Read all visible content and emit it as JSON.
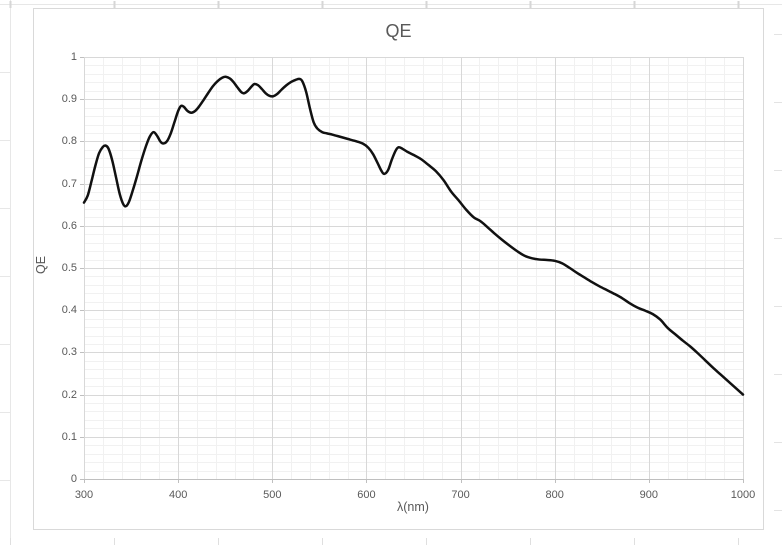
{
  "chart_data": {
    "type": "line",
    "title": "QE",
    "xlabel": "λ(nm)",
    "ylabel": "QE",
    "xlim": [
      300,
      1000
    ],
    "ylim": [
      0,
      1
    ],
    "x_ticks": [
      300,
      400,
      500,
      600,
      700,
      800,
      900,
      1000
    ],
    "y_ticks": [
      0,
      0.1,
      0.2,
      0.3,
      0.4,
      0.5,
      0.6,
      0.7,
      0.8,
      0.9,
      1
    ],
    "x_minor_step": 20,
    "y_minor_step": 0.02,
    "grid": "major+minor",
    "legend": "none",
    "style": {
      "line_color": "#111111",
      "major_grid_color": "#D8D8D8",
      "minor_grid_color": "#F1F1F1",
      "axis_color": "#BFBFBF",
      "text_color": "#595959",
      "frame_border_color": "#D9D9D9",
      "background": "#FFFFFF"
    },
    "series": [
      {
        "name": "QE",
        "points": [
          [
            300,
            0.655
          ],
          [
            304,
            0.672
          ],
          [
            308,
            0.706
          ],
          [
            312,
            0.742
          ],
          [
            316,
            0.772
          ],
          [
            320,
            0.787
          ],
          [
            323,
            0.79
          ],
          [
            326,
            0.783
          ],
          [
            330,
            0.755
          ],
          [
            334,
            0.715
          ],
          [
            338,
            0.675
          ],
          [
            342,
            0.65
          ],
          [
            345,
            0.647
          ],
          [
            348,
            0.658
          ],
          [
            352,
            0.685
          ],
          [
            356,
            0.715
          ],
          [
            361,
            0.755
          ],
          [
            366,
            0.79
          ],
          [
            370,
            0.812
          ],
          [
            374,
            0.822
          ],
          [
            378,
            0.812
          ],
          [
            381,
            0.8
          ],
          [
            384,
            0.795
          ],
          [
            388,
            0.8
          ],
          [
            392,
            0.818
          ],
          [
            396,
            0.845
          ],
          [
            400,
            0.872
          ],
          [
            403,
            0.884
          ],
          [
            406,
            0.882
          ],
          [
            410,
            0.872
          ],
          [
            414,
            0.868
          ],
          [
            418,
            0.872
          ],
          [
            422,
            0.882
          ],
          [
            427,
            0.898
          ],
          [
            432,
            0.915
          ],
          [
            437,
            0.931
          ],
          [
            442,
            0.943
          ],
          [
            447,
            0.951
          ],
          [
            451,
            0.953
          ],
          [
            455,
            0.949
          ],
          [
            459,
            0.94
          ],
          [
            463,
            0.928
          ],
          [
            467,
            0.917
          ],
          [
            470,
            0.914
          ],
          [
            474,
            0.92
          ],
          [
            478,
            0.93
          ],
          [
            481,
            0.936
          ],
          [
            485,
            0.933
          ],
          [
            489,
            0.924
          ],
          [
            493,
            0.914
          ],
          [
            497,
            0.908
          ],
          [
            501,
            0.907
          ],
          [
            505,
            0.912
          ],
          [
            510,
            0.923
          ],
          [
            515,
            0.933
          ],
          [
            520,
            0.941
          ],
          [
            525,
            0.946
          ],
          [
            529,
            0.948
          ],
          [
            532,
            0.942
          ],
          [
            536,
            0.917
          ],
          [
            540,
            0.878
          ],
          [
            544,
            0.845
          ],
          [
            548,
            0.83
          ],
          [
            553,
            0.822
          ],
          [
            558,
            0.819
          ],
          [
            564,
            0.816
          ],
          [
            572,
            0.811
          ],
          [
            580,
            0.806
          ],
          [
            588,
            0.801
          ],
          [
            596,
            0.795
          ],
          [
            602,
            0.785
          ],
          [
            607,
            0.77
          ],
          [
            612,
            0.748
          ],
          [
            616,
            0.73
          ],
          [
            619,
            0.723
          ],
          [
            623,
            0.732
          ],
          [
            627,
            0.757
          ],
          [
            631,
            0.778
          ],
          [
            634,
            0.786
          ],
          [
            638,
            0.783
          ],
          [
            643,
            0.776
          ],
          [
            650,
            0.768
          ],
          [
            658,
            0.758
          ],
          [
            666,
            0.744
          ],
          [
            674,
            0.729
          ],
          [
            682,
            0.708
          ],
          [
            690,
            0.681
          ],
          [
            698,
            0.66
          ],
          [
            706,
            0.638
          ],
          [
            714,
            0.62
          ],
          [
            721,
            0.611
          ],
          [
            728,
            0.598
          ],
          [
            736,
            0.582
          ],
          [
            744,
            0.567
          ],
          [
            752,
            0.553
          ],
          [
            760,
            0.54
          ],
          [
            768,
            0.529
          ],
          [
            776,
            0.523
          ],
          [
            784,
            0.52
          ],
          [
            792,
            0.519
          ],
          [
            800,
            0.517
          ],
          [
            808,
            0.511
          ],
          [
            816,
            0.5
          ],
          [
            824,
            0.488
          ],
          [
            832,
            0.477
          ],
          [
            840,
            0.466
          ],
          [
            848,
            0.456
          ],
          [
            856,
            0.447
          ],
          [
            864,
            0.438
          ],
          [
            872,
            0.428
          ],
          [
            880,
            0.416
          ],
          [
            888,
            0.406
          ],
          [
            896,
            0.399
          ],
          [
            904,
            0.391
          ],
          [
            912,
            0.378
          ],
          [
            920,
            0.358
          ],
          [
            928,
            0.343
          ],
          [
            936,
            0.328
          ],
          [
            944,
            0.314
          ],
          [
            952,
            0.298
          ],
          [
            960,
            0.281
          ],
          [
            968,
            0.264
          ],
          [
            976,
            0.248
          ],
          [
            984,
            0.232
          ],
          [
            992,
            0.216
          ],
          [
            1000,
            0.2
          ]
        ]
      }
    ]
  }
}
